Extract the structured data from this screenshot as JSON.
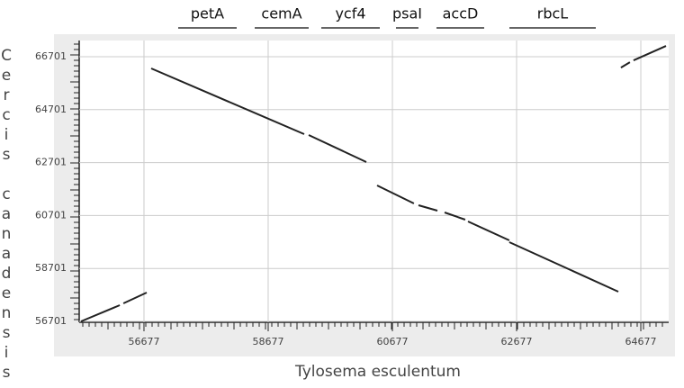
{
  "chart_data": {
    "type": "line",
    "xlabel": "Tylosema esculentum",
    "ylabel": "Cercis canadensis",
    "annotations": [
      {
        "label": "petA",
        "start": 57228,
        "end": 58170
      },
      {
        "label": "cemA",
        "start": 58460,
        "end": 59329
      },
      {
        "label": "ycf4",
        "start": 59532,
        "end": 60474
      },
      {
        "label": "psaI",
        "start": 60735,
        "end": 61097
      },
      {
        "label": "accD",
        "start": 61387,
        "end": 62155
      },
      {
        "label": "rbcL",
        "start": 62561,
        "end": 63952
      }
    ],
    "xlim": [
      55634,
      65126
    ],
    "ylim": [
      56667,
      67311
    ],
    "xticks": [
      56677,
      58677,
      60677,
      62677,
      64677
    ],
    "yticks": [
      56701,
      58701,
      60701,
      62701,
      64701,
      66701
    ],
    "grid": true,
    "series": [
      {
        "color": "#222222",
        "x": [
          55663,
          56287,
          null,
          56345,
          56721,
          null,
          56793,
          59257,
          null,
          59329,
          60257,
          null,
          60430,
          61024,
          null,
          61097,
          61401,
          null,
          61517,
          61850,
          null,
          61894,
          62560,
          null,
          62560,
          64314,
          null,
          64357,
          64502,
          null,
          64560,
          65082
        ],
        "values": [
          56701,
          57313,
          null,
          57381,
          57789,
          null,
          66256,
          63773,
          null,
          63739,
          62719,
          null,
          61835,
          61155,
          null,
          61087,
          60883,
          null,
          60815,
          60543,
          null,
          60475,
          59761,
          null,
          59693,
          57823,
          null,
          66289,
          66493,
          null,
          66561,
          67105
        ]
      }
    ]
  }
}
